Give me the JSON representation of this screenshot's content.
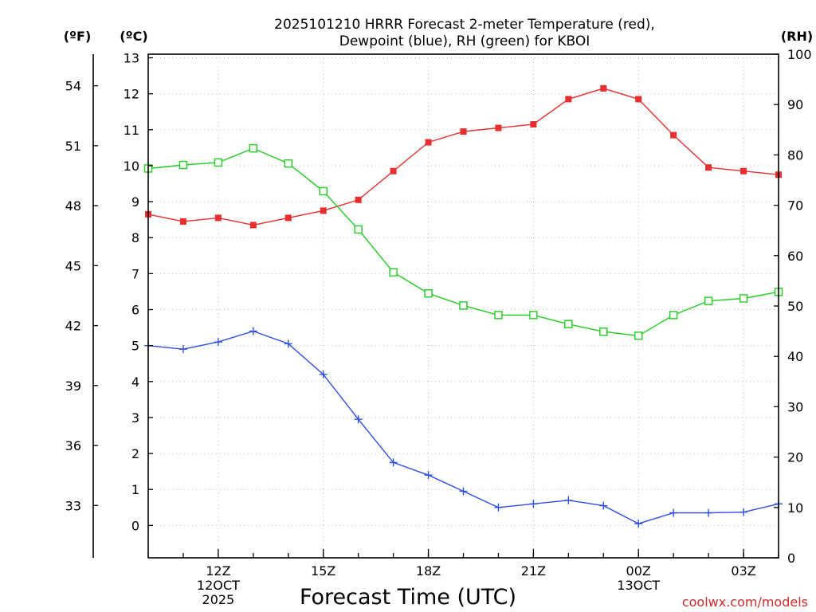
{
  "chart_data": {
    "type": "line",
    "title_line1": "2025101210 HRRR Forecast 2-meter Temperature (red),",
    "title_line2": "Dewpoint (blue), RH (green) for KBOI",
    "xlabel": "Forecast Time (UTC)",
    "watermark": "coolwx.com/models",
    "unit_labels": {
      "fahrenheit": "(ºF)",
      "celsius": "(ºC)",
      "rh": "(RH)"
    },
    "x_hours": [
      10,
      11,
      12,
      13,
      14,
      15,
      16,
      17,
      18,
      19,
      20,
      21,
      22,
      23,
      24,
      25,
      26,
      27,
      28
    ],
    "xlim": [
      10,
      28
    ],
    "x_ticks": [
      {
        "hour": 12,
        "lines": [
          "12Z",
          "12OCT",
          "2025"
        ]
      },
      {
        "hour": 15,
        "lines": [
          "15Z"
        ]
      },
      {
        "hour": 18,
        "lines": [
          "18Z"
        ]
      },
      {
        "hour": 21,
        "lines": [
          "21Z"
        ]
      },
      {
        "hour": 24,
        "lines": [
          "00Z",
          "13OCT"
        ]
      },
      {
        "hour": 27,
        "lines": [
          "03Z"
        ]
      }
    ],
    "ylim_celsius": [
      -0.9,
      13.1
    ],
    "celsius_ticks": [
      0,
      1,
      2,
      3,
      4,
      5,
      6,
      7,
      8,
      9,
      10,
      11,
      12,
      13
    ],
    "fahrenheit_ticks": [
      33,
      36,
      39,
      42,
      45,
      48,
      51,
      54
    ],
    "ylim_rh": [
      0,
      100
    ],
    "rh_ticks": [
      0,
      10,
      20,
      30,
      40,
      50,
      60,
      70,
      80,
      90,
      100
    ],
    "series": [
      {
        "name": "2-meter Temperature",
        "axis": "celsius",
        "color": "#e82e2e",
        "marker": "filled-square",
        "values": [
          8.65,
          8.45,
          8.55,
          8.35,
          8.55,
          8.75,
          9.05,
          9.85,
          10.65,
          10.95,
          11.05,
          11.15,
          11.85,
          12.15,
          11.85,
          10.85,
          9.95,
          9.85,
          9.75
        ]
      },
      {
        "name": "Dewpoint",
        "axis": "celsius",
        "color": "#2d4fe6",
        "marker": "plus",
        "values": [
          5.0,
          4.9,
          5.1,
          5.4,
          5.05,
          4.2,
          2.95,
          1.75,
          1.4,
          0.95,
          0.5,
          0.6,
          0.7,
          0.55,
          0.05,
          0.35,
          0.35,
          0.37,
          0.6
        ]
      },
      {
        "name": "RH",
        "axis": "rh",
        "color": "#22cc22",
        "marker": "open-square",
        "values": [
          77.3,
          78.0,
          78.5,
          81.3,
          78.3,
          72.8,
          65.2,
          56.7,
          52.5,
          50.1,
          48.2,
          48.2,
          46.4,
          44.9,
          44.1,
          48.2,
          51.0,
          51.5,
          52.8
        ]
      }
    ]
  }
}
